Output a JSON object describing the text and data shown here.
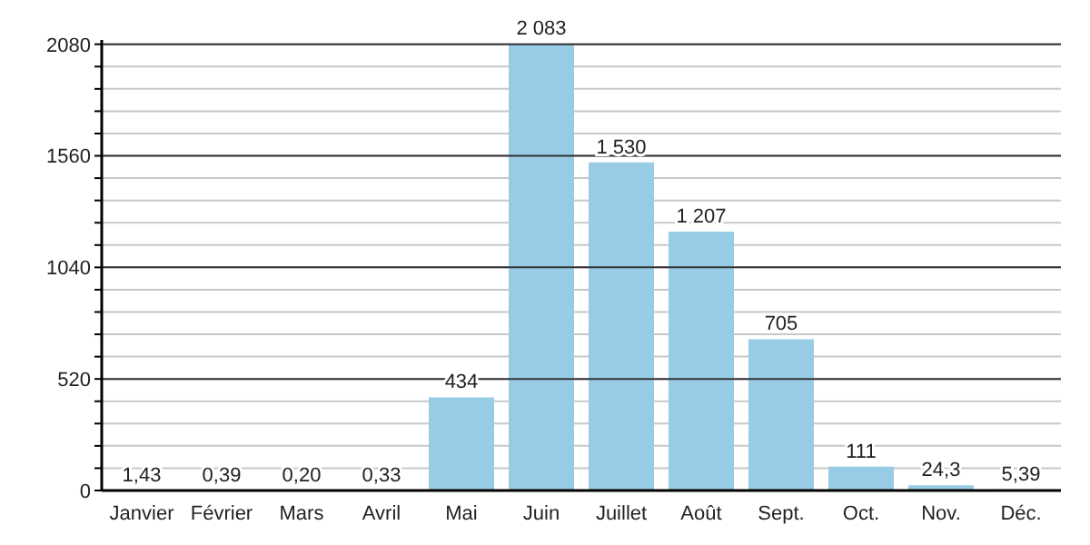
{
  "chart_data": {
    "type": "bar",
    "categories": [
      "Janvier",
      "Février",
      "Mars",
      "Avril",
      "Mai",
      "Juin",
      "Juillet",
      "Août",
      "Sept.",
      "Oct.",
      "Nov.",
      "Déc."
    ],
    "values": [
      1.43,
      0.39,
      0.2,
      0.33,
      434,
      2083,
      1530,
      1207,
      705,
      111,
      24.3,
      5.39
    ],
    "value_labels": [
      "1,43",
      "0,39",
      "0,20",
      "0,33",
      "434",
      "2 083",
      "1 530",
      "1 207",
      "705",
      "111",
      "24,3",
      "5,39"
    ],
    "color": "#98cce4",
    "ylim": [
      0,
      2100
    ],
    "yticks": [
      0,
      {
        "value": 104,
        "label": null
      },
      {
        "value": 208,
        "label": null
      },
      {
        "value": 312,
        "label": null
      },
      {
        "value": 416,
        "label": null
      },
      520,
      {
        "value": 624,
        "label": null
      },
      {
        "value": 728,
        "label": null
      },
      {
        "value": 832,
        "label": null
      },
      {
        "value": 936,
        "label": null
      },
      1040,
      {
        "value": 1144,
        "label": null
      },
      {
        "value": 1248,
        "label": null
      },
      {
        "value": 1352,
        "label": null
      },
      {
        "value": 1456,
        "label": null
      },
      1560,
      {
        "value": 1664,
        "label": null
      },
      {
        "value": 1768,
        "label": null
      },
      {
        "value": 1872,
        "label": null
      },
      {
        "value": 1976,
        "label": null
      },
      2080
    ],
    "grid": true
  }
}
